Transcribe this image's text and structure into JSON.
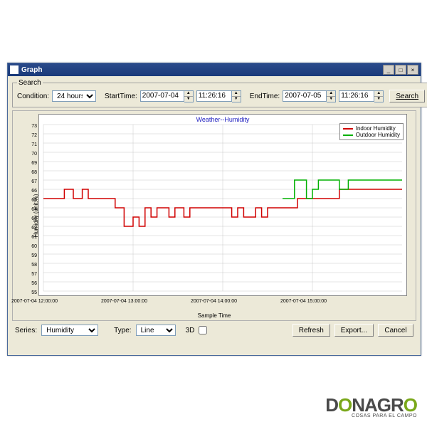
{
  "window": {
    "title": "Graph"
  },
  "search": {
    "legend": "Search",
    "condition_label": "Condition:",
    "condition_value": "24 hours",
    "starttime_label": "StartTime:",
    "start_date": "2007-07-04",
    "start_time": "11:26:16",
    "endtime_label": "EndTime:",
    "end_date": "2007-07-05",
    "end_time": "11:26:16",
    "search_btn": "Search"
  },
  "chart": {
    "title": "Weather--Humidity",
    "y_label": "Humidity (unit:%)",
    "x_label": "Sample Time",
    "ylim": [
      55,
      73
    ],
    "ytick_step": 1,
    "plot_bg": "#ffffff",
    "grid_color": "#c8c8c8",
    "axis_color": "#606060",
    "legend": [
      {
        "label": "Indoor Humidity",
        "color": "#d00000"
      },
      {
        "label": "Outdoor Humidity",
        "color": "#00b000"
      }
    ],
    "x_domain": [
      0,
      240
    ],
    "x_ticks": [
      {
        "t": 0,
        "label": "2007-07-04 12:00:00"
      },
      {
        "t": 60,
        "label": "2007-07-04 13:00:00"
      },
      {
        "t": 120,
        "label": "2007-07-04 14:00:00"
      },
      {
        "t": 180,
        "label": "2007-07-04 15:00:00"
      }
    ],
    "series_indoor": {
      "color": "#d00000",
      "width": 1.5,
      "points": [
        [
          0,
          65
        ],
        [
          14,
          65
        ],
        [
          14,
          66
        ],
        [
          20,
          66
        ],
        [
          20,
          65
        ],
        [
          26,
          65
        ],
        [
          26,
          66
        ],
        [
          30,
          66
        ],
        [
          30,
          65
        ],
        [
          48,
          65
        ],
        [
          48,
          64
        ],
        [
          54,
          64
        ],
        [
          54,
          62
        ],
        [
          60,
          62
        ],
        [
          60,
          63
        ],
        [
          64,
          63
        ],
        [
          64,
          62
        ],
        [
          68,
          62
        ],
        [
          68,
          64
        ],
        [
          72,
          64
        ],
        [
          72,
          63
        ],
        [
          76,
          63
        ],
        [
          76,
          64
        ],
        [
          84,
          64
        ],
        [
          84,
          63
        ],
        [
          88,
          63
        ],
        [
          88,
          64
        ],
        [
          94,
          64
        ],
        [
          94,
          63
        ],
        [
          98,
          63
        ],
        [
          98,
          64
        ],
        [
          126,
          64
        ],
        [
          126,
          63
        ],
        [
          130,
          63
        ],
        [
          130,
          64
        ],
        [
          134,
          64
        ],
        [
          134,
          63
        ],
        [
          142,
          63
        ],
        [
          142,
          64
        ],
        [
          146,
          64
        ],
        [
          146,
          63
        ],
        [
          150,
          63
        ],
        [
          150,
          64
        ],
        [
          170,
          64
        ],
        [
          170,
          65
        ],
        [
          198,
          65
        ],
        [
          198,
          66
        ],
        [
          240,
          66
        ]
      ]
    },
    "series_outdoor": {
      "color": "#00b000",
      "width": 1.5,
      "points": [
        [
          160,
          65
        ],
        [
          168,
          65
        ],
        [
          168,
          67
        ],
        [
          176,
          67
        ],
        [
          176,
          65
        ],
        [
          180,
          65
        ],
        [
          180,
          66
        ],
        [
          184,
          66
        ],
        [
          184,
          67
        ],
        [
          198,
          67
        ],
        [
          198,
          66
        ],
        [
          204,
          66
        ],
        [
          204,
          67
        ],
        [
          240,
          67
        ]
      ]
    }
  },
  "controls": {
    "series_label": "Series:",
    "series_value": "Humidity",
    "type_label": "Type:",
    "type_value": "Line",
    "threeD_label": "3D",
    "refresh": "Refresh",
    "export": "Export...",
    "cancel": "Cancel"
  },
  "brand": {
    "part1": "D",
    "part2": "O",
    "part3": "NAGR",
    "part4": "O",
    "tagline": "COSAS PARA EL CAMPO"
  }
}
